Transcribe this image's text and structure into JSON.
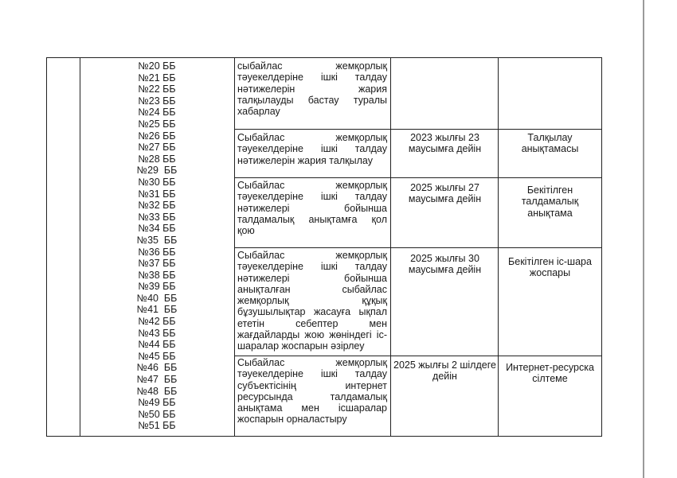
{
  "doc_codes": [
    "№20 ББ",
    "№21 ББ",
    "№22 ББ",
    "№23 ББ",
    "№24 ББ",
    "№25 ББ",
    "№26 ББ",
    "№27 ББ",
    "№28 ББ",
    "№29  ББ",
    "№30 ББ",
    "№31 ББ",
    "№32 ББ",
    "№33 ББ",
    "№34 ББ",
    "№35  ББ",
    "№36 ББ",
    "№37 ББ",
    "№38 ББ",
    "№39 ББ",
    "№40  ББ",
    "№41  ББ",
    "№42 ББ",
    "№43 ББ",
    "№44 ББ",
    "№45 ББ",
    "№46  ББ",
    "№47  ББ",
    "№48  ББ",
    "№49 ББ",
    "№50 ББ",
    "№51 ББ"
  ],
  "rows": [
    {
      "action_lines": [
        "сыбайлас жемқорлық",
        "тәуекелдеріне ішкі талдау",
        "нәтижелерін жария",
        "талқылауды бастау туралы",
        "хабарлау"
      ],
      "deadline": "",
      "result": ""
    },
    {
      "action_lines": [
        "Сыбайлас жемқорлық",
        "тәуекелдеріне ішкі талдау",
        "нәтижелерін жария талқылау"
      ],
      "deadline": "2023 жылғы 23 маусымға дейін",
      "result": "Талқылау анықтамасы"
    },
    {
      "action_lines": [
        "Сыбайлас жемқорлық",
        "тәуекелдеріне ішкі талдау",
        "нәтижелері бойынша",
        "талдамалық анықтамға қол",
        "қою"
      ],
      "deadline": "2025 жылғы 27 маусымға дейін",
      "result": "Бекітілген талдамалық анықтама"
    },
    {
      "action_lines": [
        "Сыбайлас жемқорлық",
        "тәуекелдеріне ішкі талдау",
        "нәтижелері бойынша",
        "анықталған сыбайлас",
        "жемқорлық құқық",
        "бұзушылықтар жасауға ықпал",
        "ететін себептер мен",
        "жағдайларды жою жөніндегі іс-",
        "шаралар жоспарын әзірлеу"
      ],
      "deadline": "2025 жылғы 30 маусымға дейін",
      "result": "Бекітілген іс-шара жоспары"
    },
    {
      "action_lines": [
        "Сыбайлас жемқорлық",
        "тәуекелдеріне ішкі талдау",
        "субъектісінің интернет",
        "ресурсында талдамалық",
        "анықтама мен ісшаралар",
        "жоспарын орналастыру"
      ],
      "deadline": "2025 жылғы 2 шілдеге дейін",
      "result": "Интернет-ресурска сілтеме"
    }
  ]
}
